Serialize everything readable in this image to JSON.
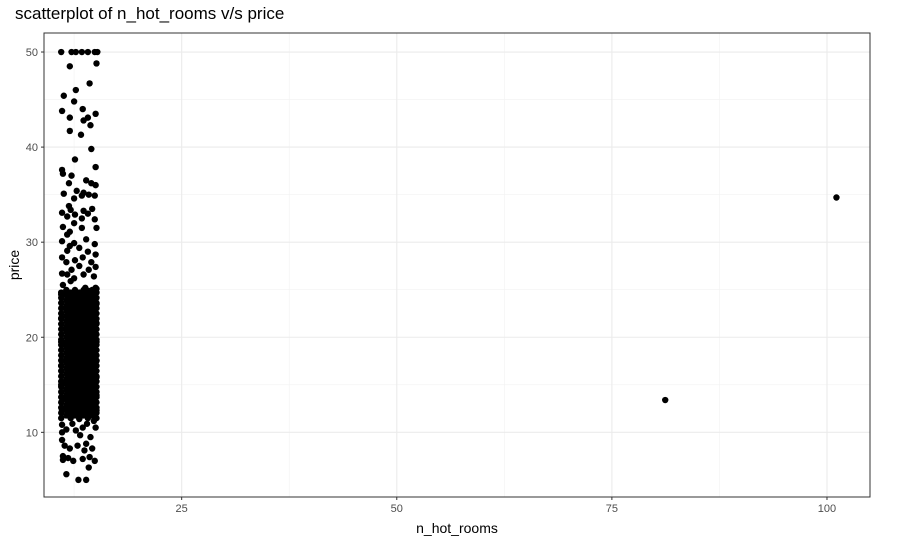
{
  "chart_data": {
    "type": "scatter",
    "title": "scatterplot of n_hot_rooms v/s price",
    "xlabel": "n_hot_rooms",
    "ylabel": "price",
    "xlim": [
      9,
      105
    ],
    "ylim": [
      3.2,
      52.0
    ],
    "x_ticks": [
      25,
      50,
      75,
      100
    ],
    "y_ticks": [
      10,
      20,
      30,
      40,
      50
    ],
    "grid": true,
    "theme": "bw",
    "point_color": "#000000",
    "points": [
      [
        11.0,
        50.0
      ],
      [
        12.2,
        50.0
      ],
      [
        12.7,
        50.0
      ],
      [
        13.4,
        50.0
      ],
      [
        14.1,
        50.0
      ],
      [
        14.9,
        50.0
      ],
      [
        15.2,
        50.0
      ],
      [
        12.0,
        48.5
      ],
      [
        15.1,
        48.8
      ],
      [
        14.3,
        46.7
      ],
      [
        12.7,
        46.0
      ],
      [
        11.3,
        45.4
      ],
      [
        12.5,
        44.8
      ],
      [
        13.5,
        44.0
      ],
      [
        11.1,
        43.8
      ],
      [
        15.0,
        43.5
      ],
      [
        14.1,
        43.1
      ],
      [
        12.0,
        43.1
      ],
      [
        13.6,
        42.8
      ],
      [
        14.4,
        42.3
      ],
      [
        12.0,
        41.7
      ],
      [
        13.3,
        41.3
      ],
      [
        14.5,
        39.8
      ],
      [
        12.6,
        38.7
      ],
      [
        15.0,
        37.9
      ],
      [
        11.1,
        37.6
      ],
      [
        11.2,
        37.2
      ],
      [
        12.2,
        37.0
      ],
      [
        13.9,
        36.5
      ],
      [
        11.9,
        36.2
      ],
      [
        14.5,
        36.2
      ],
      [
        15.0,
        36.0
      ],
      [
        12.8,
        35.4
      ],
      [
        13.6,
        35.2
      ],
      [
        11.3,
        35.1
      ],
      [
        14.2,
        35.0
      ],
      [
        13.4,
        34.9
      ],
      [
        14.9,
        34.9
      ],
      [
        12.5,
        34.6
      ],
      [
        11.9,
        33.8
      ],
      [
        14.6,
        33.5
      ],
      [
        12.1,
        33.4
      ],
      [
        13.6,
        33.3
      ],
      [
        11.1,
        33.1
      ],
      [
        14.1,
        33.0
      ],
      [
        12.6,
        32.9
      ],
      [
        11.7,
        32.7
      ],
      [
        13.4,
        32.5
      ],
      [
        14.9,
        32.4
      ],
      [
        12.5,
        32.0
      ],
      [
        11.2,
        31.6
      ],
      [
        13.4,
        31.5
      ],
      [
        15.1,
        31.5
      ],
      [
        12.0,
        31.1
      ],
      [
        11.7,
        30.8
      ],
      [
        13.9,
        30.3
      ],
      [
        11.1,
        30.1
      ],
      [
        12.5,
        29.9
      ],
      [
        14.9,
        29.8
      ],
      [
        12.0,
        29.6
      ],
      [
        13.1,
        29.4
      ],
      [
        11.7,
        29.1
      ],
      [
        14.1,
        29.0
      ],
      [
        15.0,
        28.7
      ],
      [
        13.5,
        28.4
      ],
      [
        11.1,
        28.4
      ],
      [
        12.6,
        28.1
      ],
      [
        14.5,
        27.9
      ],
      [
        11.6,
        27.9
      ],
      [
        13.1,
        27.5
      ],
      [
        15.0,
        27.4
      ],
      [
        12.2,
        27.1
      ],
      [
        14.2,
        27.1
      ],
      [
        11.1,
        26.7
      ],
      [
        13.6,
        26.6
      ],
      [
        11.7,
        26.6
      ],
      [
        14.8,
        26.4
      ],
      [
        12.5,
        26.2
      ],
      [
        12.1,
        25.9
      ],
      [
        11.2,
        25.5
      ],
      [
        13.8,
        25.2
      ],
      [
        15.0,
        25.2
      ],
      [
        11.0,
        24.5
      ],
      [
        11.0,
        22.0
      ],
      [
        11.0,
        19.5
      ],
      [
        11.0,
        17.0
      ],
      [
        11.0,
        15.0
      ],
      [
        11.1,
        13.6
      ],
      [
        11.1,
        12.3
      ],
      [
        11.6,
        24.8
      ],
      [
        11.6,
        23.0
      ],
      [
        11.6,
        21.0
      ],
      [
        11.6,
        19.0
      ],
      [
        11.6,
        17.5
      ],
      [
        11.6,
        15.5
      ],
      [
        11.6,
        14.5
      ],
      [
        11.6,
        12.5
      ],
      [
        12.1,
        24.6
      ],
      [
        12.1,
        22.5
      ],
      [
        12.1,
        20.5
      ],
      [
        12.1,
        18.5
      ],
      [
        12.1,
        16.5
      ],
      [
        12.1,
        14.2
      ],
      [
        12.1,
        13.3
      ],
      [
        12.1,
        11.7
      ],
      [
        12.6,
        24.8
      ],
      [
        12.6,
        23.2
      ],
      [
        12.6,
        21.2
      ],
      [
        12.6,
        19.2
      ],
      [
        12.6,
        17.2
      ],
      [
        12.6,
        15.2
      ],
      [
        12.6,
        13.8
      ],
      [
        13.1,
        24.5
      ],
      [
        13.1,
        22.8
      ],
      [
        13.1,
        20.8
      ],
      [
        13.1,
        18.8
      ],
      [
        13.1,
        16.8
      ],
      [
        13.1,
        14.6
      ],
      [
        13.1,
        12.8
      ],
      [
        13.1,
        11.4
      ],
      [
        13.6,
        24.7
      ],
      [
        13.6,
        22.2
      ],
      [
        13.6,
        20.2
      ],
      [
        13.6,
        18.2
      ],
      [
        13.6,
        16.2
      ],
      [
        13.6,
        14.2
      ],
      [
        13.6,
        13.0
      ],
      [
        14.1,
        24.9
      ],
      [
        14.1,
        23.0
      ],
      [
        14.1,
        21.0
      ],
      [
        14.1,
        19.0
      ],
      [
        14.1,
        17.0
      ],
      [
        14.1,
        15.0
      ],
      [
        14.1,
        13.5
      ],
      [
        14.1,
        12.6
      ],
      [
        14.6,
        24.6
      ],
      [
        14.6,
        22.6
      ],
      [
        14.6,
        20.6
      ],
      [
        14.6,
        18.6
      ],
      [
        14.6,
        16.6
      ],
      [
        14.6,
        14.8
      ],
      [
        14.6,
        13.2
      ],
      [
        14.6,
        11.9
      ],
      [
        15.1,
        25.1
      ],
      [
        15.1,
        23.5
      ],
      [
        15.1,
        21.5
      ],
      [
        15.1,
        19.5
      ],
      [
        15.1,
        17.5
      ],
      [
        15.1,
        15.8
      ],
      [
        15.1,
        13.9
      ],
      [
        15.1,
        12.3
      ],
      [
        11.1,
        10.8
      ],
      [
        11.1,
        10.0
      ],
      [
        11.1,
        9.2
      ],
      [
        11.2,
        7.5
      ],
      [
        11.2,
        7.1
      ],
      [
        11.4,
        8.6
      ],
      [
        11.6,
        10.3
      ],
      [
        11.8,
        7.3
      ],
      [
        12.0,
        8.3
      ],
      [
        12.3,
        10.9
      ],
      [
        12.4,
        7.0
      ],
      [
        12.7,
        10.2
      ],
      [
        12.9,
        8.6
      ],
      [
        13.2,
        9.7
      ],
      [
        13.5,
        10.5
      ],
      [
        13.5,
        7.2
      ],
      [
        13.7,
        8.1
      ],
      [
        13.9,
        8.8
      ],
      [
        14.0,
        10.9
      ],
      [
        14.3,
        7.4
      ],
      [
        14.4,
        9.5
      ],
      [
        14.6,
        8.3
      ],
      [
        14.8,
        11.2
      ],
      [
        15.0,
        10.5
      ],
      [
        14.9,
        7.0
      ],
      [
        14.2,
        6.3
      ],
      [
        13.0,
        5.0
      ],
      [
        13.9,
        5.0
      ],
      [
        11.6,
        5.6
      ],
      [
        81.2,
        13.4
      ],
      [
        101.1,
        34.7
      ]
    ],
    "bands": [
      {
        "x": [
          11.0,
          11.6,
          12.1,
          12.6,
          13.1,
          13.6,
          14.1,
          14.6,
          15.1
        ],
        "y_from": 11.5,
        "y_to": 25.0,
        "step": 0.55
      }
    ]
  }
}
